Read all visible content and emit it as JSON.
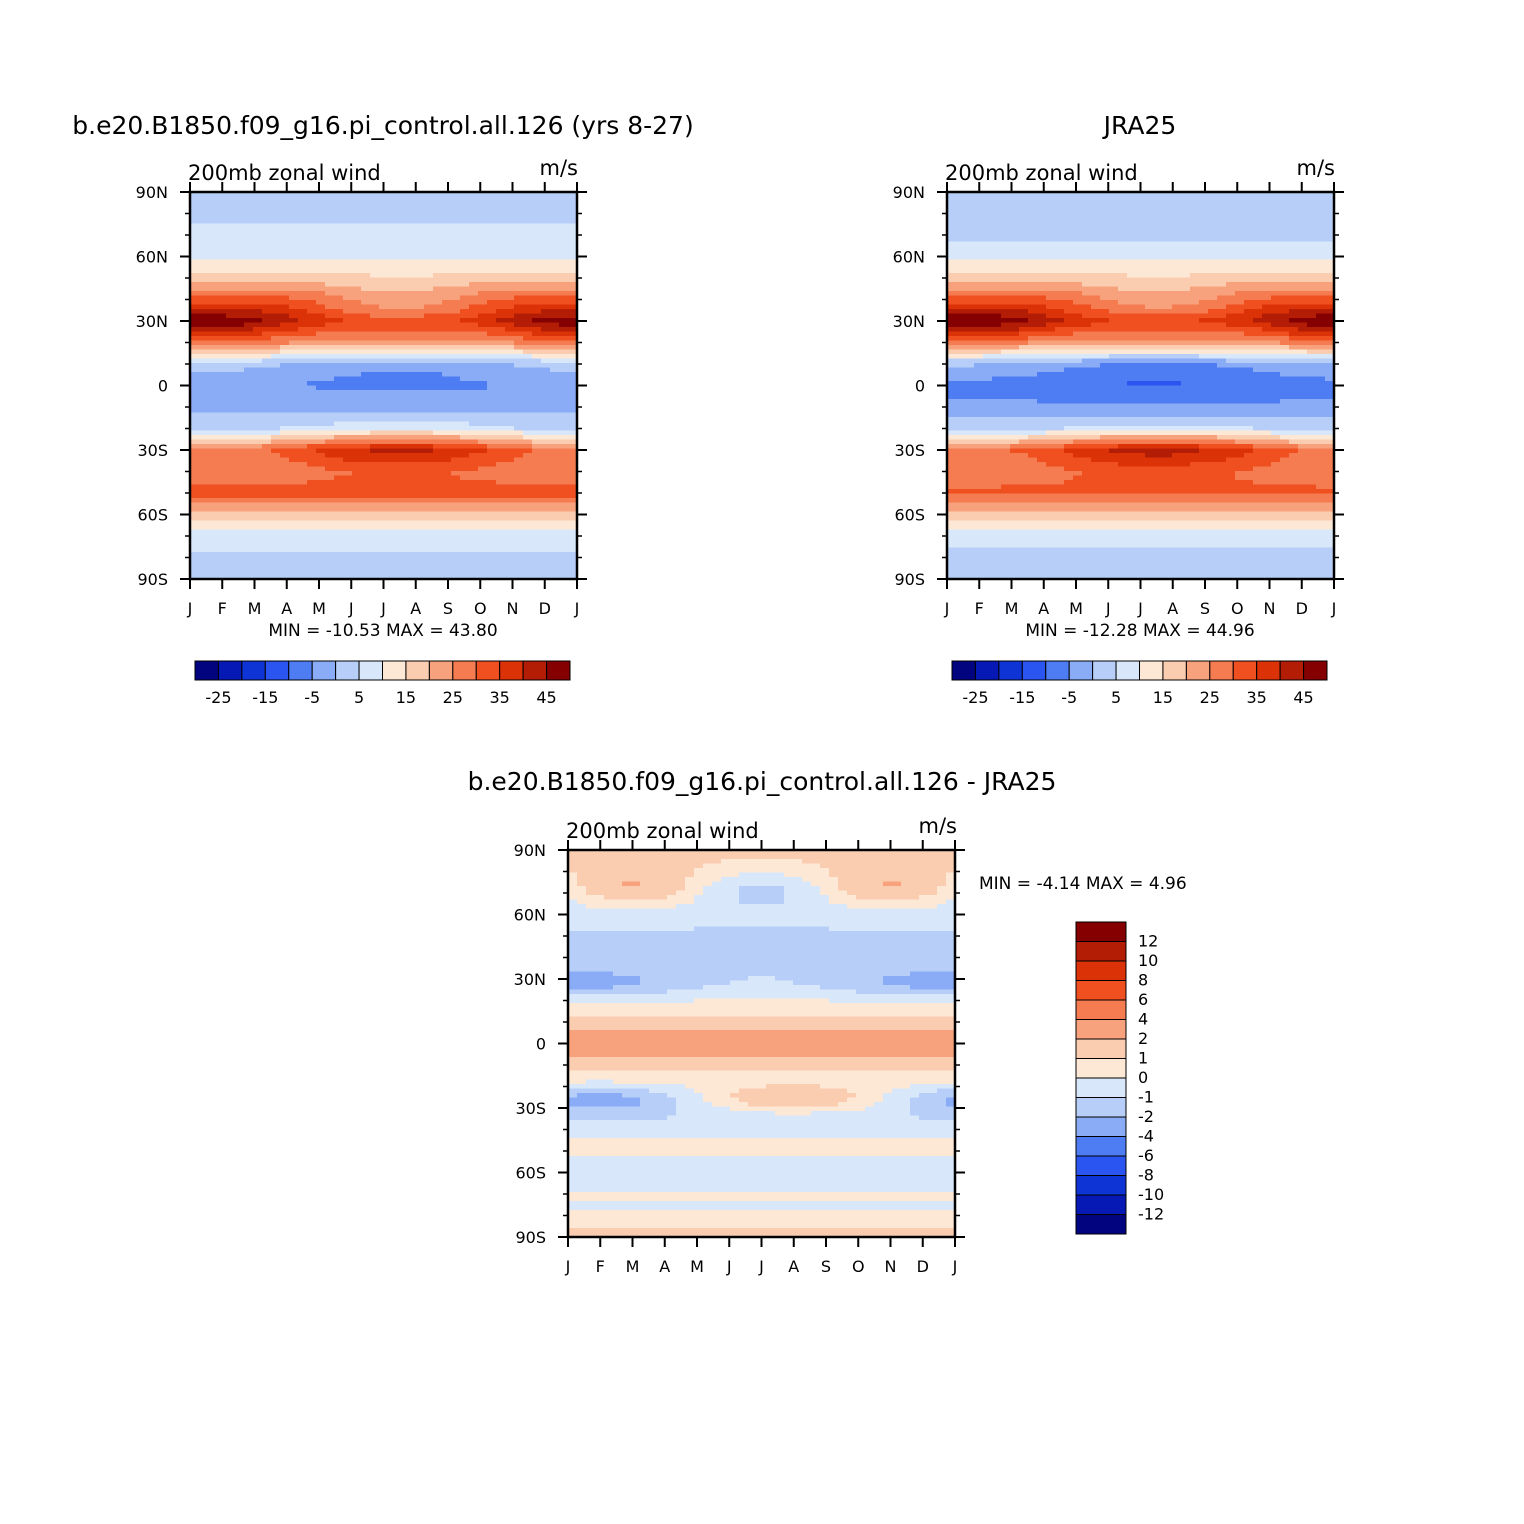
{
  "colors": {
    "scale": [
      "#02037f",
      "#0619b5",
      "#0f34d6",
      "#2a55f0",
      "#4e7df3",
      "#8aabf6",
      "#b7cff8",
      "#d8e8fa",
      "#fde8d6",
      "#fbcdb0",
      "#f7a27d",
      "#f57b50",
      "#f04f20",
      "#db3208",
      "#b41d05",
      "#840001"
    ],
    "diff_scale": [
      "#02037f",
      "#0619b5",
      "#0f34d6",
      "#2a55f0",
      "#4e7df3",
      "#8aabf6",
      "#b7cff8",
      "#d8e8fa",
      "#fde8d6",
      "#fbcdb0",
      "#f7a27d",
      "#f57b50",
      "#f04f20",
      "#db3208",
      "#b41d05",
      "#840001"
    ]
  },
  "chart_data": [
    {
      "type": "heatmap",
      "title": "b.e20.B1850.f09_g16.pi_control.all.126 (yrs 8-27)",
      "left_label": "200mb zonal wind",
      "right_label": "m/s",
      "x_ticks": [
        "J",
        "F",
        "M",
        "A",
        "M",
        "J",
        "J",
        "A",
        "S",
        "O",
        "N",
        "D",
        "J"
      ],
      "y_ticks": [
        "90N",
        "60N",
        "30N",
        "0",
        "30S",
        "60S",
        "90S"
      ],
      "stats": "MIN = -10.53 MAX = 43.80",
      "levels": [
        -30,
        -25,
        -20,
        -15,
        -10,
        -5,
        0,
        5,
        10,
        15,
        20,
        25,
        30,
        35,
        40,
        45,
        50
      ],
      "colorbar_labels": [
        "-25",
        "-15",
        "-5",
        "5",
        "15",
        "25",
        "35",
        "45"
      ],
      "lat_profile": [
        [
          90,
          4
        ],
        [
          80,
          4
        ],
        [
          70,
          6
        ],
        [
          60,
          9
        ],
        [
          50,
          17
        ],
        [
          40,
          30
        ],
        [
          30,
          40
        ],
        [
          20,
          25
        ],
        [
          10,
          2
        ],
        [
          0,
          -4
        ],
        [
          -10,
          -2
        ],
        [
          -20,
          6
        ],
        [
          -30,
          34
        ],
        [
          -40,
          28
        ],
        [
          -50,
          32
        ],
        [
          -60,
          18
        ],
        [
          -70,
          8
        ],
        [
          -80,
          4
        ],
        [
          -90,
          3
        ]
      ]
    },
    {
      "type": "heatmap",
      "title": "JRA25",
      "left_label": "200mb zonal wind",
      "right_label": "m/s",
      "x_ticks": [
        "J",
        "F",
        "M",
        "A",
        "M",
        "J",
        "J",
        "A",
        "S",
        "O",
        "N",
        "D",
        "J"
      ],
      "y_ticks": [
        "90N",
        "60N",
        "30N",
        "0",
        "30S",
        "60S",
        "90S"
      ],
      "stats": "MIN = -12.28 MAX = 44.96",
      "levels": [
        -30,
        -25,
        -20,
        -15,
        -10,
        -5,
        0,
        5,
        10,
        15,
        20,
        25,
        30,
        35,
        40,
        45,
        50
      ],
      "colorbar_labels": [
        "-25",
        "-15",
        "-5",
        "5",
        "15",
        "25",
        "35",
        "45"
      ],
      "lat_profile": [
        [
          90,
          4
        ],
        [
          80,
          3
        ],
        [
          70,
          4
        ],
        [
          60,
          9
        ],
        [
          50,
          17
        ],
        [
          40,
          30
        ],
        [
          30,
          41
        ],
        [
          20,
          24
        ],
        [
          10,
          0
        ],
        [
          0,
          -7
        ],
        [
          -10,
          -4
        ],
        [
          -20,
          5
        ],
        [
          -30,
          35
        ],
        [
          -40,
          29
        ],
        [
          -50,
          31
        ],
        [
          -60,
          17
        ],
        [
          -70,
          8
        ],
        [
          -80,
          3
        ],
        [
          -90,
          3
        ]
      ]
    },
    {
      "type": "heatmap",
      "title": "b.e20.B1850.f09_g16.pi_control.all.126 - JRA25",
      "left_label": "200mb zonal wind",
      "right_label": "m/s",
      "x_ticks": [
        "J",
        "F",
        "M",
        "A",
        "M",
        "J",
        "J",
        "A",
        "S",
        "O",
        "N",
        "D",
        "J"
      ],
      "y_ticks": [
        "90N",
        "60N",
        "30N",
        "0",
        "30S",
        "60S",
        "90S"
      ],
      "stats": "MIN = -4.14 MAX = 4.96",
      "levels": [
        -14,
        -12,
        -10,
        -8,
        -6,
        -4,
        -2,
        -1,
        0,
        1,
        2,
        4,
        6,
        8,
        10,
        12,
        14
      ],
      "colorbar_labels": [
        "12",
        "10",
        "8",
        "6",
        "4",
        "2",
        "1",
        "0",
        "-1",
        "-2",
        "-4",
        "-6",
        "-8",
        "-10",
        "-12"
      ]
    }
  ]
}
